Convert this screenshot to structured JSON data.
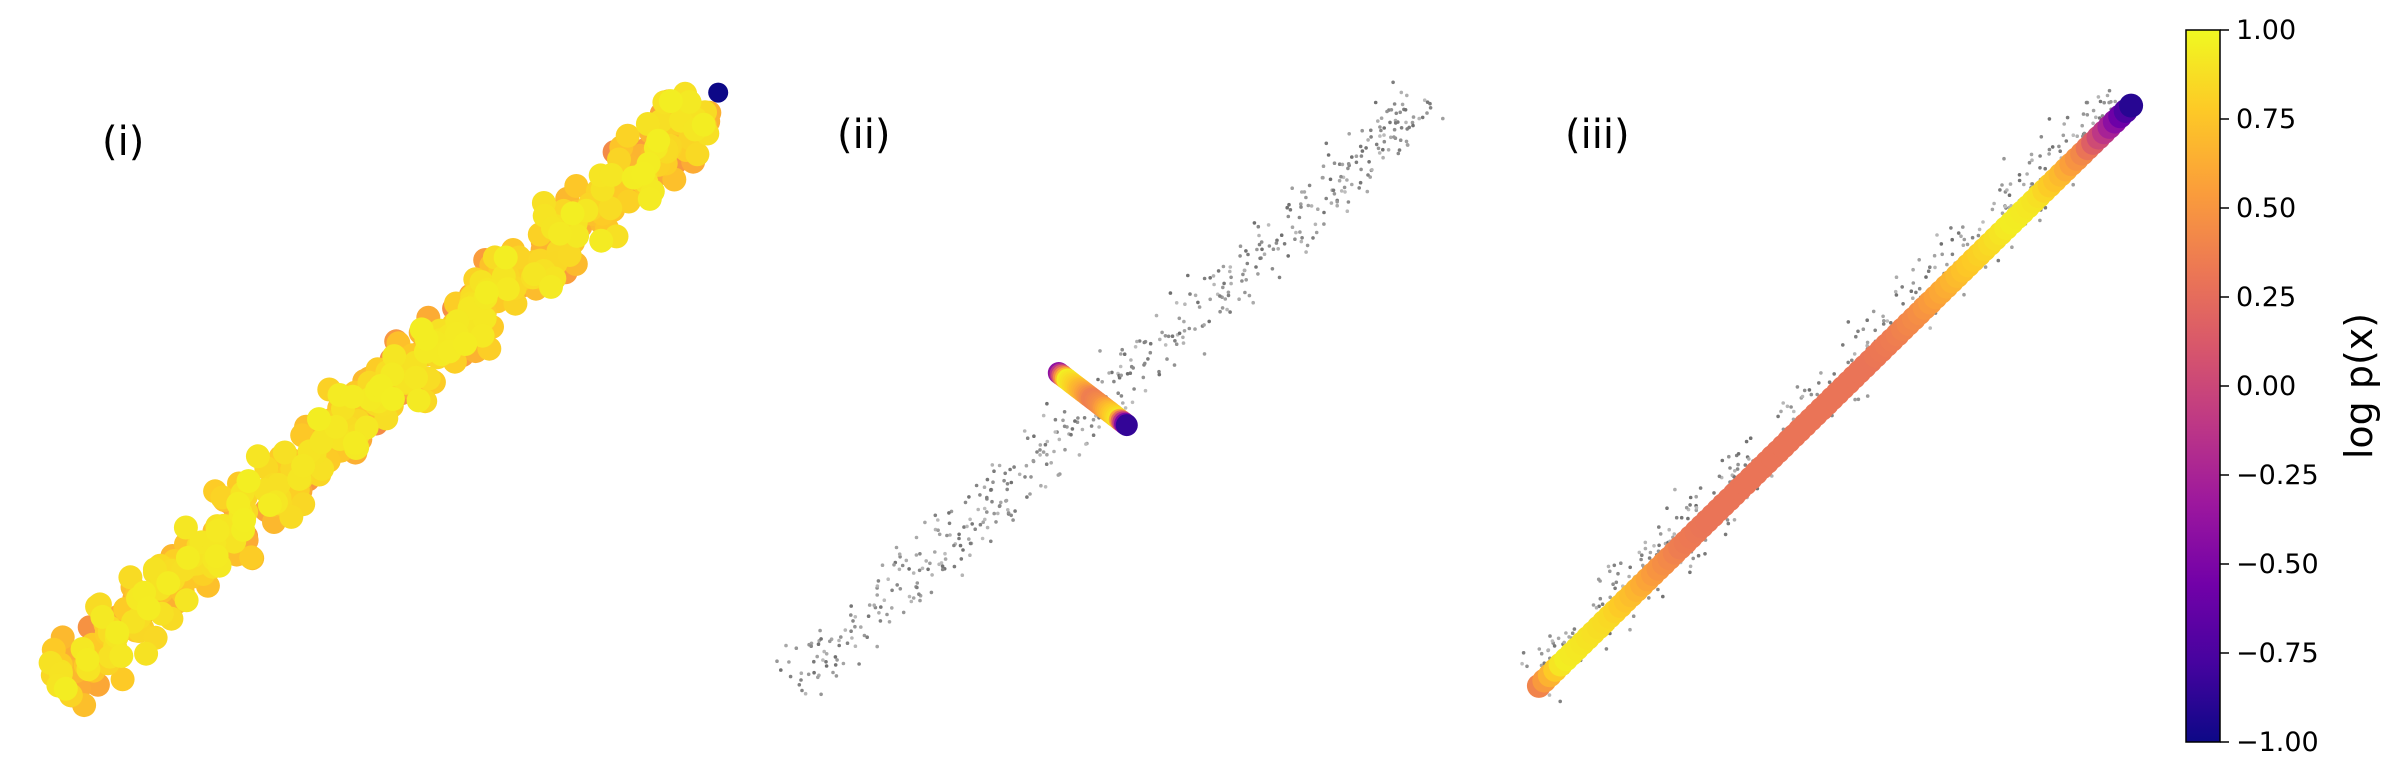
{
  "chart_data": [
    {
      "type": "scatter",
      "panel_label": "(i)",
      "description_points": "dense band of large markers colored by log p(x)",
      "band": {
        "start": [
          0.02,
          0.04
        ],
        "end": [
          0.97,
          0.93
        ],
        "half_width": 0.07
      },
      "outlier": {
        "x": 0.99,
        "y": 0.95,
        "value": -1.0
      },
      "values_range": [
        0.3,
        0.95
      ]
    },
    {
      "type": "scatter",
      "panel_label": "(ii)",
      "background": {
        "color": "#9a9a9a"
      },
      "trajectory": {
        "start": [
          0.41,
          0.52
        ],
        "end": [
          0.51,
          0.44
        ],
        "values": [
          -0.4,
          0.95,
          0.8,
          0.6,
          0.35,
          0.45,
          0.7,
          0.9,
          -0.85
        ]
      }
    },
    {
      "type": "scatter",
      "panel_label": "(iii)",
      "background": {
        "color": "#9a9a9a"
      },
      "trajectory": {
        "start": [
          0.03,
          0.04
        ],
        "end": [
          0.97,
          0.93
        ],
        "values": [
          0.4,
          0.95,
          0.9,
          0.85,
          0.7,
          0.5,
          0.35,
          0.3,
          0.3,
          0.3,
          0.3,
          0.3,
          0.3,
          0.3,
          0.3,
          0.35,
          0.45,
          0.6,
          0.75,
          0.85,
          0.95,
          0.9,
          0.7,
          0.4,
          -0.2,
          -0.9
        ]
      }
    }
  ],
  "colorbar": {
    "label": "log p(x)",
    "min": -1.0,
    "max": 1.0,
    "ticks": [
      "1.00",
      "0.75",
      "0.50",
      "0.25",
      "0.00",
      "−0.25",
      "−0.50",
      "−0.75",
      "−1.00"
    ],
    "colormap": "plasma",
    "colors": [
      "#0d0887",
      "#46039f",
      "#7201a8",
      "#9c179e",
      "#bd3786",
      "#d8576b",
      "#ed7953",
      "#fb9f3a",
      "#fdca26",
      "#f0f921"
    ]
  }
}
